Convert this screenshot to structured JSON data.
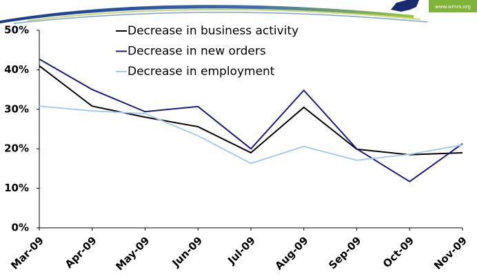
{
  "logo": "www.wmro.org",
  "chart_data": {
    "type": "line",
    "categories": [
      "Mar-09",
      "Apr-09",
      "May-09",
      "Jun-09",
      "Jul-09",
      "Aug-09",
      "Sep-09",
      "Oct-09",
      "Nov-09"
    ],
    "series": [
      {
        "name": "Decrease in business activity",
        "color": "#000000",
        "values": [
          41,
          30.8,
          28,
          25.6,
          19,
          30.5,
          19.9,
          18.5,
          19
        ]
      },
      {
        "name": "Decrease in new orders",
        "color": "#1a1a80",
        "values": [
          42.7,
          35,
          29.4,
          30.7,
          20,
          34.8,
          20,
          11.7,
          21.3
        ]
      },
      {
        "name": "Decrease in employment",
        "color": "#a6cbf0",
        "values": [
          30.8,
          29.6,
          28.9,
          23.3,
          16.3,
          20.6,
          17.1,
          18.6,
          21
        ]
      }
    ],
    "ylim": [
      0,
      50
    ],
    "yticks": [
      {
        "value": 0,
        "label": "0%"
      },
      {
        "value": 10,
        "label": "10%"
      },
      {
        "value": 20,
        "label": "20%"
      },
      {
        "value": 30,
        "label": "30%"
      },
      {
        "value": 40,
        "label": "40%"
      },
      {
        "value": 50,
        "label": "50%"
      }
    ],
    "grid": false,
    "legend": "top"
  }
}
